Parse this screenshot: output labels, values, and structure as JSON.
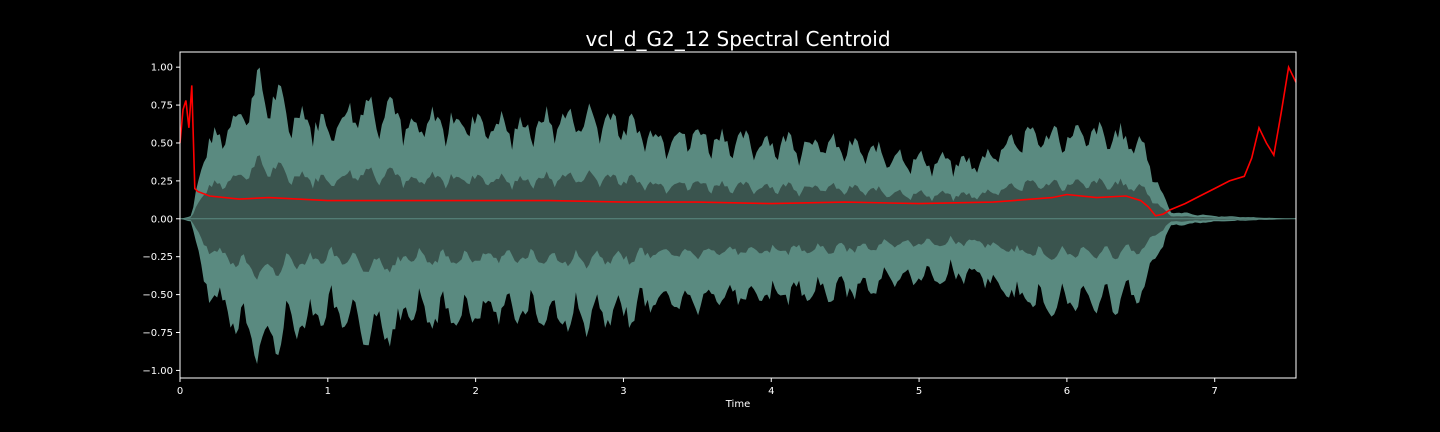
{
  "chart_data": {
    "type": "line",
    "title": "vcl_d_G2_12 Spectral Centroid",
    "xlabel": "Time",
    "ylabel": "",
    "xlim": [
      0,
      7.55
    ],
    "ylim": [
      -1.05,
      1.1
    ],
    "x_ticks": [
      0,
      1,
      2,
      3,
      4,
      5,
      6,
      7
    ],
    "x_tick_labels": [
      "0",
      "1",
      "2",
      "3",
      "4",
      "5",
      "6",
      "7"
    ],
    "y_ticks": [
      1.0,
      0.75,
      0.5,
      0.25,
      0.0,
      -0.25,
      -0.5,
      -0.75,
      -1.0
    ],
    "y_tick_labels": [
      "1.00",
      "0.75",
      "0.50",
      "0.25",
      "0.00",
      "−0.25",
      "−0.50",
      "−0.75",
      "−1.00"
    ],
    "grid": false,
    "legend": "none",
    "colors": {
      "background": "#000000",
      "waveform_outer": "#5a8a80",
      "waveform_inner": "#3a544e",
      "centroid": "#ff0000",
      "axes": "#ffffff"
    },
    "waveform_envelope": {
      "x": [
        0,
        0.08,
        0.15,
        0.3,
        0.45,
        0.52,
        0.65,
        0.75,
        0.9,
        1.0,
        1.2,
        1.5,
        1.5,
        1.7,
        2.0,
        2.3,
        2.6,
        2.9,
        3.2,
        3.5,
        3.8,
        4.2,
        4.6,
        5.0,
        5.4,
        5.6,
        5.75,
        6.0,
        6.3,
        6.5,
        6.6,
        6.7,
        7.0,
        7.55
      ],
      "peak": [
        0.0,
        0.02,
        0.45,
        0.65,
        0.8,
        0.95,
        0.85,
        0.75,
        0.72,
        0.65,
        0.8,
        0.8,
        0.6,
        0.7,
        0.7,
        0.65,
        0.72,
        0.72,
        0.6,
        0.6,
        0.55,
        0.55,
        0.5,
        0.42,
        0.4,
        0.55,
        0.6,
        0.6,
        0.6,
        0.55,
        0.3,
        0.05,
        0.02,
        0.0
      ]
    },
    "series": [
      {
        "x": [
          0,
          0.02,
          0.04,
          0.06,
          0.08,
          0.1,
          0.12,
          0.2,
          0.4,
          0.6,
          0.8,
          1.0,
          1.5,
          2.0,
          2.5,
          3.0,
          3.5,
          4.0,
          4.5,
          5.0,
          5.5,
          5.9,
          6.0,
          6.2,
          6.4,
          6.5,
          6.55,
          6.6,
          6.65,
          6.7,
          6.8,
          6.9,
          7.0,
          7.1,
          7.2,
          7.25,
          7.3,
          7.35,
          7.4,
          7.45,
          7.5,
          7.55
        ],
        "values": [
          0.5,
          0.72,
          0.78,
          0.6,
          0.88,
          0.2,
          0.18,
          0.15,
          0.13,
          0.14,
          0.13,
          0.12,
          0.12,
          0.12,
          0.12,
          0.11,
          0.11,
          0.1,
          0.11,
          0.1,
          0.11,
          0.14,
          0.16,
          0.14,
          0.15,
          0.12,
          0.08,
          0.02,
          0.03,
          0.06,
          0.1,
          0.15,
          0.2,
          0.25,
          0.28,
          0.4,
          0.6,
          0.5,
          0.42,
          0.7,
          1.0,
          0.9
        ]
      }
    ]
  }
}
